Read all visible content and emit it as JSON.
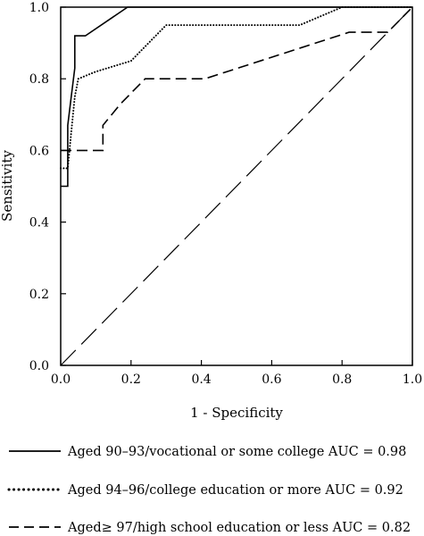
{
  "chart_data": {
    "type": "line",
    "title": "",
    "xlabel": "1 - Specificity",
    "ylabel": "Sensitivity",
    "xlim": [
      0,
      1
    ],
    "ylim": [
      0,
      1
    ],
    "x_ticks": [
      "0.0",
      "0.2",
      "0.4",
      "0.6",
      "0.8",
      "1.0"
    ],
    "y_ticks": [
      "0.0",
      "0.2",
      "0.4",
      "0.6",
      "0.8",
      "1.0"
    ],
    "grid": false,
    "legend_position": "bottom",
    "series": [
      {
        "name": "Aged 90–93/vocational or some college AUC = 0.98",
        "style": "solid",
        "points": [
          [
            0,
            0.5
          ],
          [
            0.02,
            0.5
          ],
          [
            0.02,
            0.67
          ],
          [
            0.03,
            0.75
          ],
          [
            0.04,
            0.83
          ],
          [
            0.04,
            0.92
          ],
          [
            0.07,
            0.92
          ],
          [
            0.19,
            1.0
          ],
          [
            1.0,
            1.0
          ]
        ]
      },
      {
        "name": "Aged 94–96/college education or more AUC = 0.92",
        "style": "dotted",
        "points": [
          [
            0,
            0.55
          ],
          [
            0.02,
            0.55
          ],
          [
            0.03,
            0.65
          ],
          [
            0.04,
            0.75
          ],
          [
            0.05,
            0.8
          ],
          [
            0.1,
            0.82
          ],
          [
            0.2,
            0.85
          ],
          [
            0.25,
            0.9
          ],
          [
            0.3,
            0.95
          ],
          [
            0.68,
            0.95
          ],
          [
            0.8,
            1.0
          ],
          [
            1.0,
            1.0
          ]
        ]
      },
      {
        "name": "Aged≥ 97/high school education or less AUC = 0.82",
        "style": "dashed",
        "points": [
          [
            0,
            0.6
          ],
          [
            0.12,
            0.6
          ],
          [
            0.12,
            0.67
          ],
          [
            0.17,
            0.73
          ],
          [
            0.24,
            0.8
          ],
          [
            0.41,
            0.8
          ],
          [
            0.82,
            0.93
          ],
          [
            0.93,
            0.93
          ],
          [
            1.0,
            1.0
          ]
        ]
      },
      {
        "name": "",
        "style": "long-dash",
        "points": [
          [
            0,
            0
          ],
          [
            1,
            1
          ]
        ]
      }
    ]
  }
}
